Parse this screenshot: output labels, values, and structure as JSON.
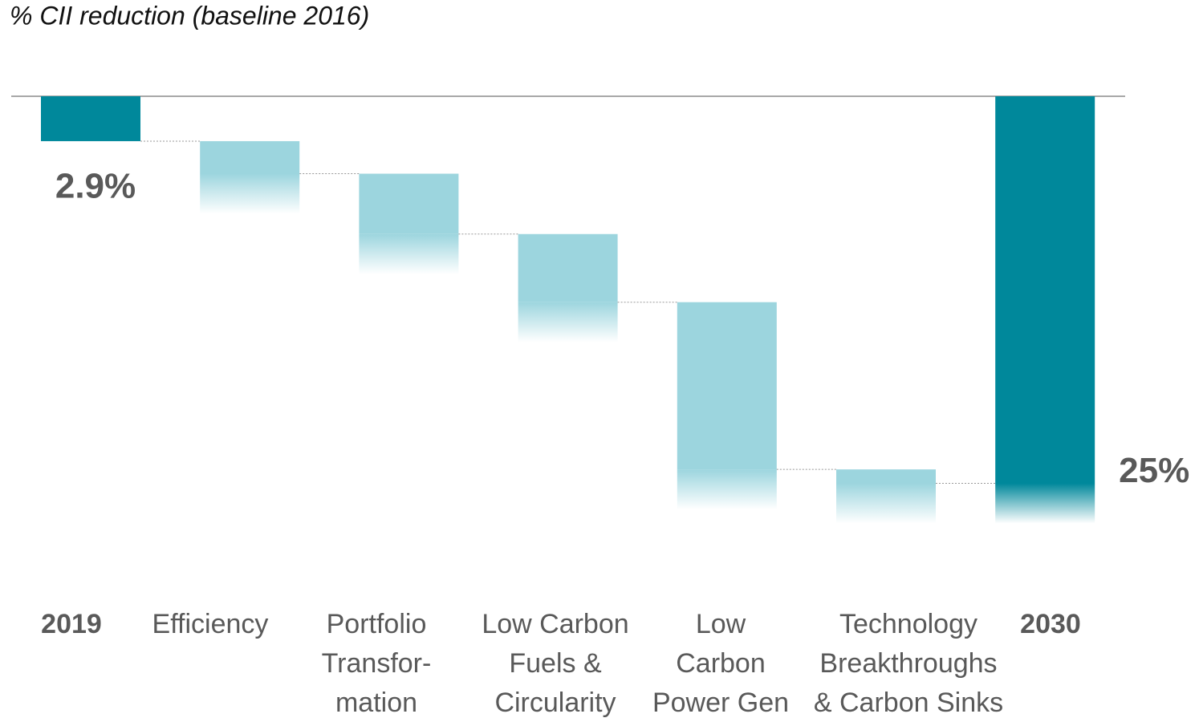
{
  "chart_data": {
    "type": "waterfall",
    "title": "% CII reduction (baseline 2016)",
    "categories": [
      [
        "2019"
      ],
      [
        "Efficiency"
      ],
      [
        "Portfolio",
        "Transfor-",
        "mation"
      ],
      [
        "Low Carbon",
        "Fuels &",
        "Circularity"
      ],
      [
        "Low",
        "Carbon",
        "Power Gen"
      ],
      [
        "Technology",
        "Breakthroughs",
        "& Carbon Sinks"
      ],
      [
        "2030"
      ]
    ],
    "values": [
      2.9,
      2.1,
      3.9,
      4.4,
      10.8,
      0.9,
      25
    ],
    "value_labels": [
      "2.9%",
      null,
      null,
      null,
      null,
      null,
      "25%"
    ],
    "total_color": "#00889b",
    "step_color": "#9cd5de",
    "ylim": [
      0,
      30
    ],
    "inverted": true
  }
}
